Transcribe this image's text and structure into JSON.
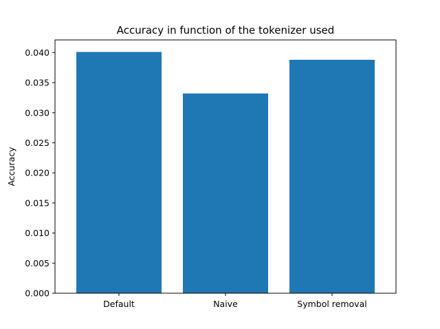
{
  "chart_data": {
    "type": "bar",
    "title": "Accuracy in function of the tokenizer used",
    "xlabel": "",
    "ylabel": "Accuracy",
    "categories": [
      "Default",
      "Naive",
      "Symbol removal"
    ],
    "values": [
      0.0401,
      0.0332,
      0.0388
    ],
    "ylim": [
      0,
      0.0421
    ],
    "yticks": [
      "0.000",
      "0.005",
      "0.010",
      "0.015",
      "0.020",
      "0.025",
      "0.030",
      "0.035",
      "0.040"
    ],
    "grid": false,
    "bar_color": "#1f77b4"
  }
}
